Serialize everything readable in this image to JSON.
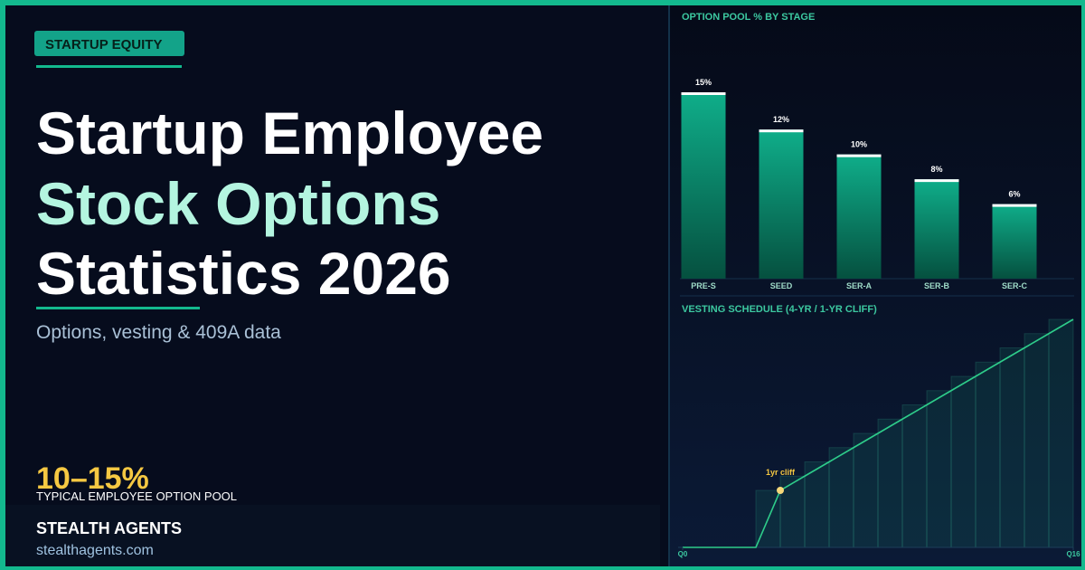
{
  "badge": "STARTUP EQUITY",
  "title_lines": [
    "Startup Employee",
    "Stock Options",
    "Statistics 2026"
  ],
  "subtitle": "Options, vesting & 409A data",
  "stat": {
    "value": "10–15%",
    "label": "TYPICAL EMPLOYEE OPTION POOL"
  },
  "brand": {
    "name": "STEALTH AGENTS",
    "url": "stealthagents.com"
  },
  "chart_data": [
    {
      "type": "bar",
      "title": "OPTION POOL %  BY STAGE",
      "categories": [
        "PRE-S",
        "SEED",
        "SER-A",
        "SER-B",
        "SER-C"
      ],
      "values": [
        15,
        12,
        10,
        8,
        6
      ],
      "value_labels": [
        "15%",
        "12%",
        "10%",
        "8%",
        "6%"
      ],
      "ylim": [
        0,
        15
      ],
      "color": "#0fae8a"
    },
    {
      "type": "line",
      "title": "VESTING SCHEDULE  (4-YR / 1-YR CLIFF)",
      "x": [
        0,
        1,
        2,
        3,
        4,
        5,
        6,
        7,
        8,
        9,
        10,
        11,
        12,
        13,
        14,
        15,
        16
      ],
      "values": [
        0,
        0,
        0,
        0,
        25,
        31.25,
        37.5,
        43.75,
        50,
        56.25,
        62.5,
        68.75,
        75,
        81.25,
        87.5,
        93.75,
        100
      ],
      "xlim": [
        0,
        16
      ],
      "ylim": [
        0,
        100
      ],
      "xticks": [
        {
          "value": 0,
          "label": "Q0"
        },
        {
          "value": 16,
          "label": "Q16"
        }
      ],
      "color": "#2ecc8a",
      "annotations": [
        {
          "text": "1yr cliff",
          "x": 4,
          "y": 25
        }
      ]
    }
  ]
}
